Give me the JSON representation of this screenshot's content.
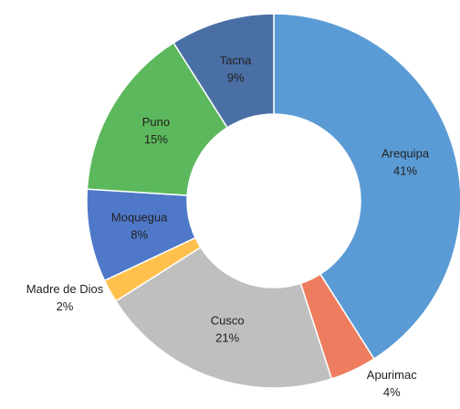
{
  "chart_data": {
    "type": "donut",
    "categories": [
      "Arequipa",
      "Apurimac",
      "Cusco",
      "Madre de Dios",
      "Moquegua",
      "Puno",
      "Tacna"
    ],
    "values": [
      41,
      4,
      21,
      2,
      8,
      15,
      9
    ],
    "value_labels": [
      "41%",
      "4%",
      "21%",
      "2%",
      "8%",
      "15%",
      "9%"
    ],
    "colors": [
      "#5b9bd5",
      "#ed7d5e",
      "#bfbfbf",
      "#ffc04d",
      "#4f78c9",
      "#5cb85c",
      "#4a6fa5"
    ]
  }
}
